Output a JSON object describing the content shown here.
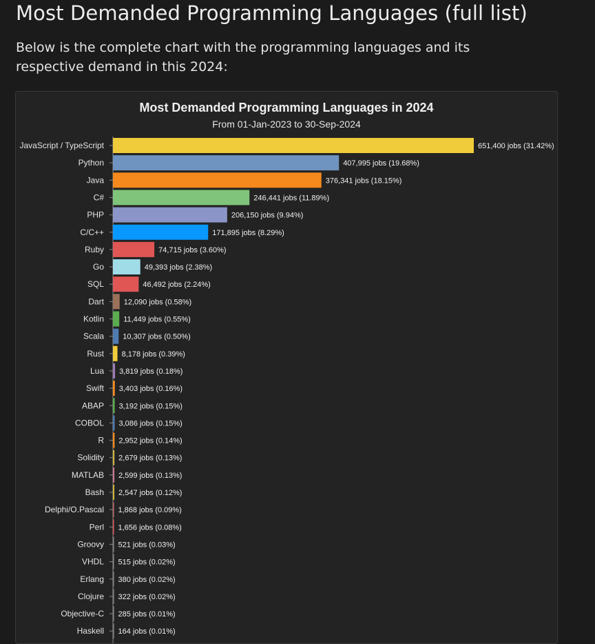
{
  "page": {
    "title": "Most Demanded Programming Languages (full list)",
    "intro": "Below is the complete chart with the programming languages and its respective demand in this 2024:"
  },
  "chart_data": {
    "type": "bar",
    "orientation": "horizontal",
    "title": "Most Demanded Programming Languages in 2024",
    "subtitle": "From 01-Jan-2023 to 30-Sep-2024",
    "xlabel": "",
    "ylabel": "",
    "grid": false,
    "categories": [
      "JavaScript / TypeScript",
      "Python",
      "Java",
      "C#",
      "PHP",
      "C/C++",
      "Ruby",
      "Go",
      "SQL",
      "Dart",
      "Kotlin",
      "Scala",
      "Rust",
      "Lua",
      "Swift",
      "ABAP",
      "COBOL",
      "R",
      "Solidity",
      "MATLAB",
      "Bash",
      "Delphi/O.Pascal",
      "Perl",
      "Groovy",
      "VHDL",
      "Erlang",
      "Clojure",
      "Objective-C",
      "Haskell"
    ],
    "values": [
      651400,
      407995,
      376341,
      246441,
      206150,
      171895,
      74715,
      49393,
      46492,
      12090,
      11449,
      10307,
      8178,
      3819,
      3403,
      3192,
      3086,
      2952,
      2679,
      2599,
      2547,
      1868,
      1656,
      521,
      515,
      380,
      322,
      285,
      164
    ],
    "value_labels": [
      "651,400 jobs (31.42%)",
      "407,995 jobs (19.68%)",
      "376,341 jobs (18.15%)",
      "246,441 jobs (11.89%)",
      "206,150 jobs (9.94%)",
      "171,895 jobs (8.29%)",
      "74,715 jobs (3.60%)",
      "49,393 jobs (2.38%)",
      "46,492 jobs (2.24%)",
      "12,090 jobs (0.58%)",
      "11,449 jobs (0.55%)",
      "10,307 jobs (0.50%)",
      "8,178 jobs (0.39%)",
      "3,819 jobs (0.18%)",
      "3,403 jobs (0.16%)",
      "3,192 jobs (0.15%)",
      "3,086 jobs (0.15%)",
      "2,952 jobs (0.14%)",
      "2,679 jobs (0.13%)",
      "2,599 jobs (0.13%)",
      "2,547 jobs (0.12%)",
      "1,868 jobs (0.09%)",
      "1,656 jobs (0.08%)",
      "521 jobs (0.03%)",
      "515 jobs (0.02%)",
      "380 jobs (0.02%)",
      "322 jobs (0.02%)",
      "285 jobs (0.01%)",
      "164 jobs (0.01%)"
    ],
    "colors": [
      "#f0cb3a",
      "#7094c0",
      "#f5891d",
      "#7fc47a",
      "#8c95c8",
      "#0998ff",
      "#e05655",
      "#a0dce8",
      "#e05655",
      "#9b715a",
      "#5cab50",
      "#4f7bb2",
      "#f0cb3a",
      "#9b7cb5",
      "#f5891d",
      "#5cab50",
      "#4f7bb2",
      "#f5891d",
      "#cfb33a",
      "#c6788e",
      "#cfb33a",
      "#c26a6a",
      "#e05655",
      "#888888",
      "#888888",
      "#888888",
      "#888888",
      "#888888",
      "#888888"
    ],
    "xlim": [
      0,
      651400
    ]
  }
}
